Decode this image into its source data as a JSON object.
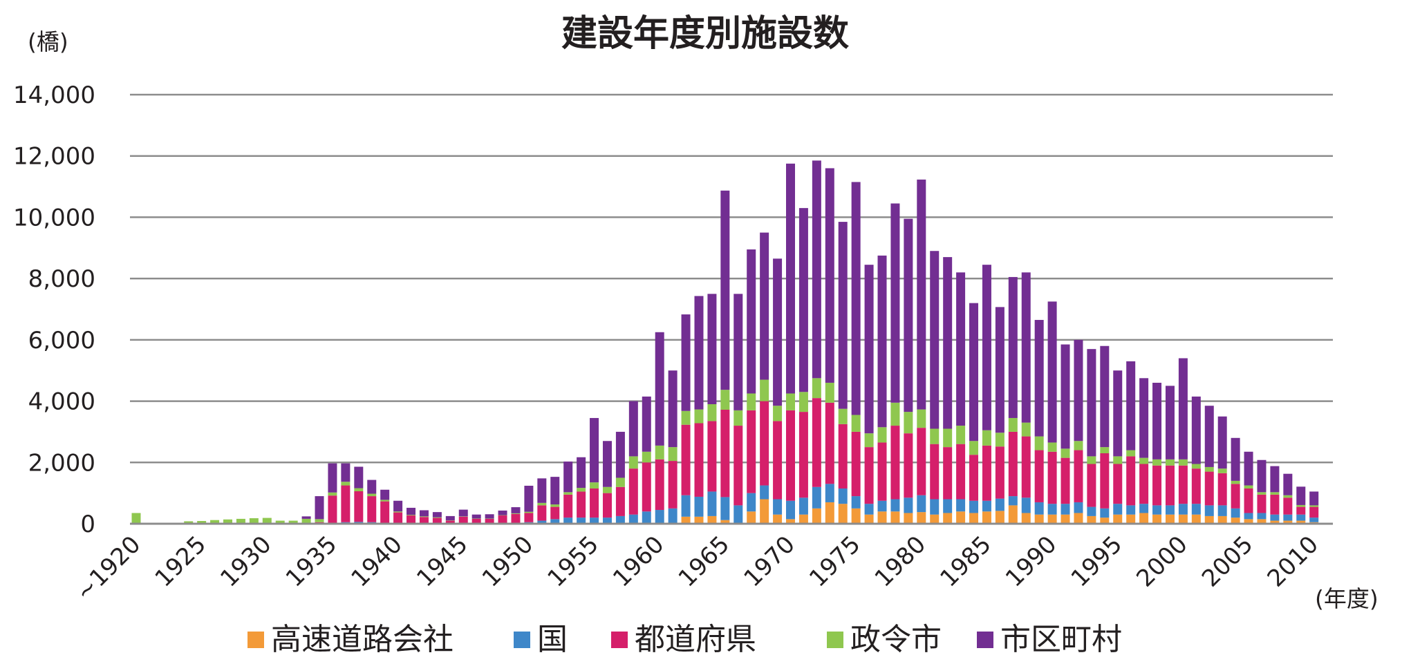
{
  "chart_data": {
    "type": "bar",
    "stacked": true,
    "title": "建設年度別施設数",
    "ylabel": "(橋)",
    "xlabel": "(年度)",
    "ylim": [
      0,
      14000
    ],
    "yticks": [
      0,
      2000,
      4000,
      6000,
      8000,
      10000,
      12000,
      14000
    ],
    "ytick_labels": [
      "0",
      "2,000",
      "4,000",
      "6,000",
      "8,000",
      "10,000",
      "12,000",
      "14,000"
    ],
    "grid": true,
    "legend_position": "bottom",
    "categories": [
      "~1920",
      "1921",
      "1922",
      "1923",
      "1924",
      "1925",
      "1926",
      "1927",
      "1928",
      "1929",
      "1930",
      "1931",
      "1932",
      "1933",
      "1934",
      "1935",
      "1936",
      "1937",
      "1938",
      "1939",
      "1940",
      "1941",
      "1942",
      "1943",
      "1944",
      "1945",
      "1946",
      "1947",
      "1948",
      "1949",
      "1950",
      "1951",
      "1952",
      "1953",
      "1954",
      "1955",
      "1956",
      "1957",
      "1958",
      "1959",
      "1960",
      "1961",
      "1962",
      "1963",
      "1964",
      "1965",
      "1966",
      "1967",
      "1968",
      "1969",
      "1970",
      "1971",
      "1972",
      "1973",
      "1974",
      "1975",
      "1976",
      "1977",
      "1978",
      "1979",
      "1980",
      "1981",
      "1982",
      "1983",
      "1984",
      "1985",
      "1986",
      "1987",
      "1988",
      "1989",
      "1990",
      "1991",
      "1992",
      "1993",
      "1994",
      "1995",
      "1996",
      "1997",
      "1998",
      "1999",
      "2000",
      "2001",
      "2002",
      "2003",
      "2004",
      "2005",
      "2006",
      "2007",
      "2008",
      "2009",
      "2010"
    ],
    "x_tick_labels": [
      "~1920",
      "1925",
      "1930",
      "1935",
      "1940",
      "1945",
      "1950",
      "1955",
      "1960",
      "1965",
      "1970",
      "1975",
      "1980",
      "1985",
      "1990",
      "1995",
      "2000",
      "2005",
      "2010"
    ],
    "series": [
      {
        "name": "高速道路会社",
        "color": "#f39a38",
        "values": [
          0,
          0,
          0,
          0,
          0,
          0,
          0,
          0,
          0,
          0,
          0,
          0,
          0,
          0,
          0,
          0,
          0,
          0,
          0,
          0,
          0,
          0,
          0,
          0,
          0,
          0,
          0,
          0,
          0,
          0,
          0,
          0,
          0,
          0,
          0,
          0,
          0,
          0,
          0,
          0,
          0,
          0,
          230,
          230,
          250,
          120,
          0,
          400,
          800,
          300,
          150,
          300,
          500,
          700,
          650,
          500,
          300,
          400,
          400,
          350,
          380,
          300,
          350,
          400,
          350,
          400,
          420,
          600,
          350,
          300,
          300,
          300,
          350,
          250,
          200,
          300,
          300,
          350,
          300,
          300,
          300,
          300,
          250,
          250,
          200,
          150,
          150,
          100,
          100,
          100,
          50
        ]
      },
      {
        "name": "国",
        "color": "#3e87c9",
        "values": [
          0,
          0,
          0,
          0,
          0,
          0,
          0,
          0,
          0,
          0,
          0,
          0,
          0,
          0,
          0,
          20,
          50,
          60,
          50,
          30,
          20,
          20,
          20,
          20,
          10,
          10,
          10,
          10,
          20,
          20,
          50,
          100,
          150,
          200,
          200,
          200,
          200,
          250,
          300,
          400,
          450,
          500,
          700,
          650,
          800,
          750,
          600,
          600,
          450,
          500,
          600,
          550,
          700,
          600,
          500,
          400,
          350,
          350,
          400,
          500,
          550,
          500,
          450,
          400,
          400,
          350,
          400,
          300,
          500,
          400,
          350,
          350,
          350,
          300,
          300,
          350,
          300,
          300,
          300,
          300,
          350,
          350,
          350,
          350,
          300,
          200,
          200,
          200,
          200,
          200,
          150
        ]
      },
      {
        "name": "都道府県",
        "color": "#d51f6a",
        "values": [
          0,
          0,
          0,
          0,
          0,
          0,
          0,
          0,
          0,
          0,
          0,
          0,
          0,
          0,
          50,
          900,
          1200,
          1000,
          850,
          700,
          350,
          250,
          200,
          170,
          90,
          220,
          150,
          150,
          250,
          300,
          300,
          500,
          400,
          750,
          850,
          950,
          800,
          950,
          1500,
          1600,
          1650,
          1550,
          2300,
          2400,
          2300,
          2850,
          2600,
          2700,
          2750,
          2550,
          2950,
          2800,
          2900,
          2650,
          2100,
          2100,
          1850,
          1900,
          2400,
          2100,
          2200,
          1800,
          1700,
          1800,
          1500,
          1800,
          1700,
          2100,
          2000,
          1700,
          1700,
          1500,
          1700,
          1400,
          1800,
          1300,
          1600,
          1300,
          1300,
          1300,
          1250,
          1150,
          1100,
          1050,
          800,
          800,
          600,
          650,
          550,
          250,
          350
        ]
      },
      {
        "name": "政令市",
        "color": "#8fc74f",
        "values": [
          350,
          30,
          30,
          30,
          80,
          90,
          120,
          140,
          160,
          180,
          190,
          100,
          100,
          160,
          100,
          100,
          120,
          100,
          80,
          50,
          30,
          20,
          20,
          20,
          10,
          10,
          10,
          10,
          10,
          20,
          40,
          80,
          80,
          80,
          120,
          200,
          200,
          300,
          400,
          350,
          450,
          450,
          450,
          450,
          550,
          650,
          500,
          550,
          700,
          500,
          550,
          650,
          650,
          650,
          500,
          550,
          450,
          500,
          750,
          700,
          600,
          500,
          600,
          600,
          450,
          500,
          450,
          450,
          450,
          450,
          300,
          300,
          300,
          250,
          200,
          250,
          200,
          200,
          200,
          200,
          200,
          150,
          150,
          150,
          100,
          100,
          80,
          80,
          80,
          60,
          50
        ]
      },
      {
        "name": "市区町村",
        "color": "#722e92",
        "values": [
          0,
          0,
          0,
          0,
          0,
          0,
          0,
          0,
          0,
          0,
          0,
          0,
          0,
          80,
          750,
          950,
          600,
          700,
          450,
          330,
          350,
          230,
          200,
          170,
          140,
          220,
          130,
          140,
          150,
          200,
          850,
          800,
          900,
          1000,
          1000,
          2100,
          1500,
          1500,
          1800,
          1800,
          3700,
          2500,
          3150,
          3700,
          3600,
          6500,
          3800,
          4700,
          4800,
          4800,
          7500,
          6000,
          7100,
          7000,
          6100,
          7600,
          5500,
          5600,
          6500,
          6300,
          7500,
          5800,
          5600,
          5000,
          4500,
          5400,
          4100,
          4600,
          4900,
          3800,
          4600,
          3400,
          3300,
          3500,
          3300,
          2800,
          2900,
          2600,
          2500,
          2400,
          3300,
          2200,
          2000,
          1700,
          1400,
          1100,
          1050,
          850,
          700,
          600,
          450
        ]
      }
    ]
  },
  "labels": {
    "title": "建設年度別施設数",
    "y_unit": "(橋)",
    "x_unit": "(年度)"
  }
}
